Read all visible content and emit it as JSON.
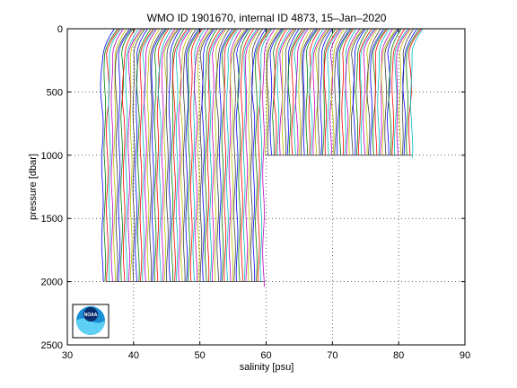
{
  "chart_data": {
    "type": "line",
    "title": "WMO ID 1901670, internal ID 4873, 15–Jan–2020",
    "xlabel": "salinity [psu]",
    "ylabel": "pressure [dbar]",
    "xlim": [
      30,
      90
    ],
    "ylim": [
      2500,
      0
    ],
    "y_reversed": true,
    "grid": true,
    "grid_style": "dotted",
    "xticks": [
      30,
      40,
      50,
      60,
      70,
      80,
      90
    ],
    "yticks": [
      0,
      500,
      1000,
      1500,
      2000,
      2500
    ],
    "xtick_labels": [
      "30",
      "40",
      "50",
      "60",
      "70",
      "80",
      "90"
    ],
    "ytick_labels": [
      "0",
      "500",
      "1000",
      "1500",
      "2000",
      "2500"
    ],
    "layout_note": "waterfall of salinity profiles, each profile offset to the right; colors cycle",
    "series_colors": [
      "#0000ff",
      "#008000",
      "#ff0000",
      "#00bfbf",
      "#bf00bf",
      "#bfbf00",
      "#404040"
    ],
    "profiles": {
      "count": 130,
      "deep_group": {
        "x_start": 35.3,
        "x_end": 59.6,
        "max_pressure": 2000,
        "max_pressure_last": 2040
      },
      "shallow_group": {
        "x_start": 60.0,
        "x_end": 82.0,
        "max_pressure": 1000,
        "max_pressure_last": 1020
      },
      "surface_offset_psu": 1.8
    }
  },
  "logo": {
    "text": "NOAA",
    "icon": "noaa-logo-icon"
  }
}
